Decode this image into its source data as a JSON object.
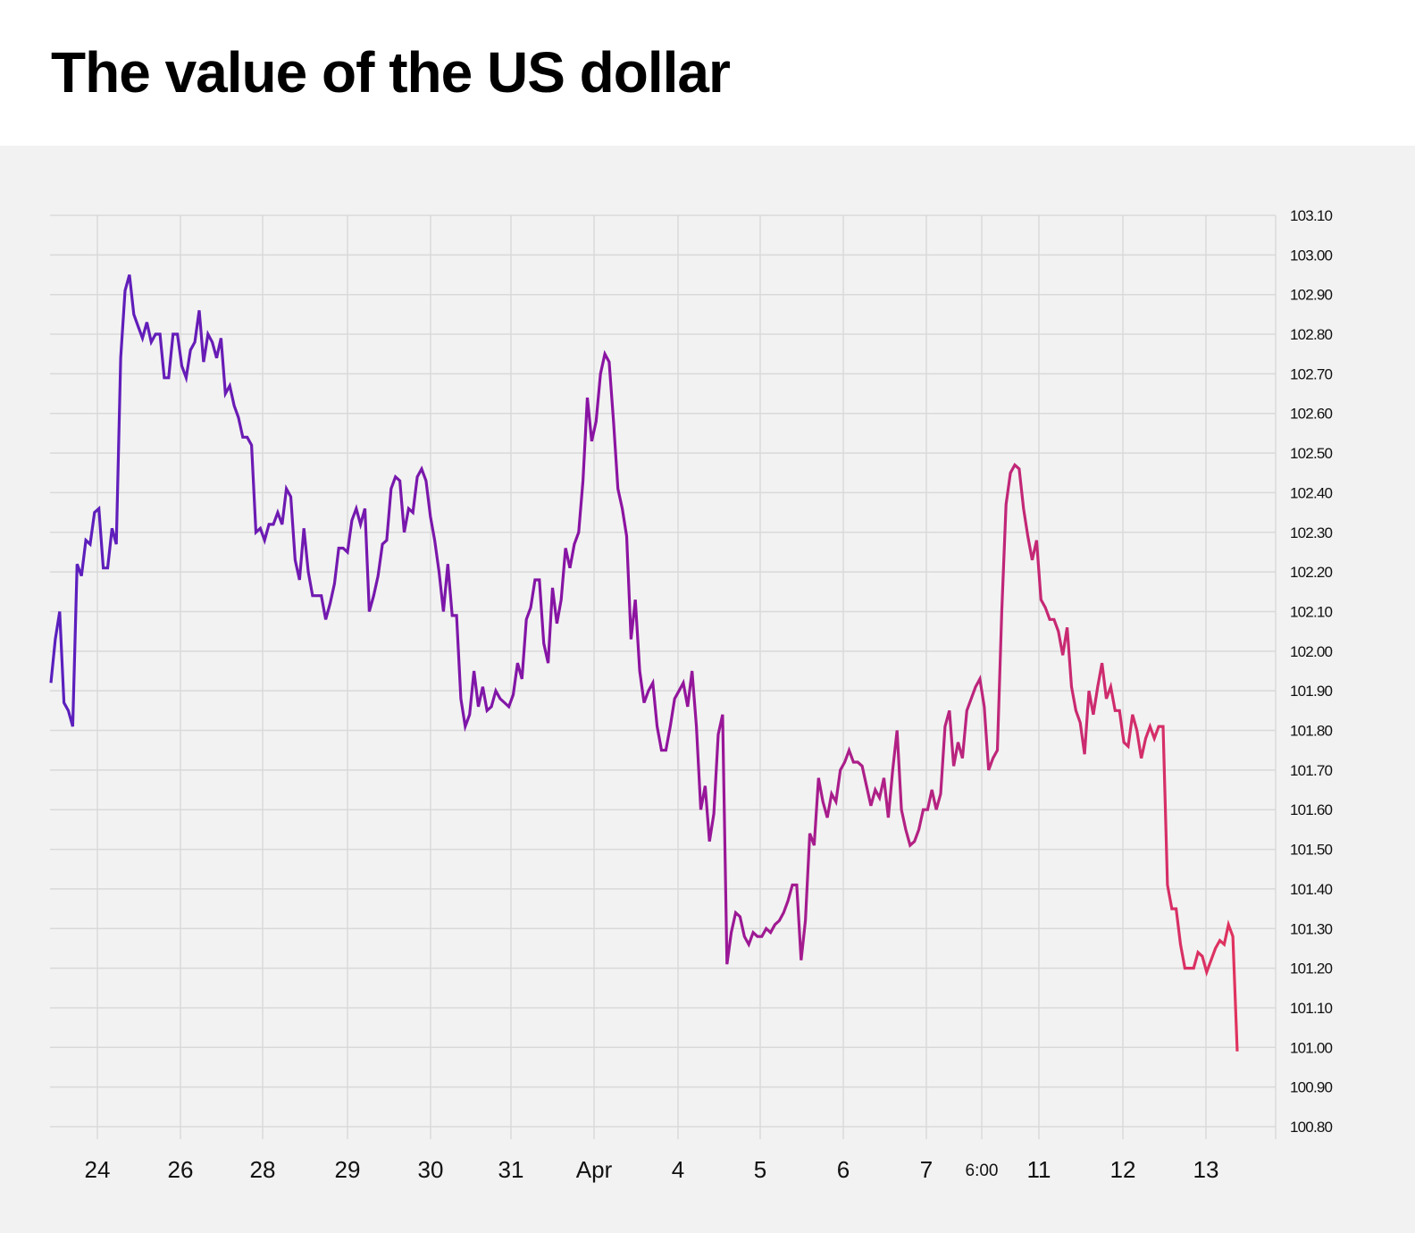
{
  "title": "The value of the US dollar",
  "chart_data": {
    "type": "line",
    "title": "The value of the US dollar",
    "xlabel": "",
    "ylabel": "",
    "ylim": [
      100.8,
      103.1
    ],
    "grid": true,
    "y_axis_side": "right",
    "x_tick_labels": [
      "24",
      "26",
      "28",
      "29",
      "30",
      "31",
      "Apr",
      "4",
      "5",
      "6",
      "7",
      "6:00",
      "11",
      "12",
      "13"
    ],
    "y_tick_labels": [
      "103.10",
      "103.00",
      "102.90",
      "102.80",
      "102.70",
      "102.60",
      "102.50",
      "102.40",
      "102.30",
      "102.20",
      "102.10",
      "102.00",
      "101.90",
      "101.80",
      "101.70",
      "101.60",
      "101.50",
      "101.40",
      "101.30",
      "101.20",
      "101.10",
      "101.00",
      "100.90",
      "100.80"
    ],
    "colors": {
      "start": "#5a1fbe",
      "middle": "#8e13a0",
      "end": "#e0335f",
      "grid": "#d9d9d9",
      "background": "#f2f2f2"
    },
    "values": [
      101.92,
      102.03,
      102.1,
      101.87,
      101.85,
      101.81,
      102.22,
      102.19,
      102.28,
      102.27,
      102.35,
      102.36,
      102.21,
      102.21,
      102.31,
      102.27,
      102.74,
      102.91,
      102.95,
      102.85,
      102.82,
      102.79,
      102.83,
      102.78,
      102.8,
      102.8,
      102.69,
      102.69,
      102.8,
      102.8,
      102.72,
      102.69,
      102.76,
      102.78,
      102.86,
      102.73,
      102.8,
      102.78,
      102.74,
      102.79,
      102.65,
      102.67,
      102.62,
      102.59,
      102.54,
      102.54,
      102.52,
      102.3,
      102.31,
      102.28,
      102.32,
      102.32,
      102.35,
      102.32,
      102.41,
      102.39,
      102.23,
      102.18,
      102.31,
      102.2,
      102.14,
      102.14,
      102.14,
      102.08,
      102.12,
      102.17,
      102.26,
      102.26,
      102.25,
      102.33,
      102.36,
      102.32,
      102.36,
      102.1,
      102.14,
      102.19,
      102.27,
      102.28,
      102.41,
      102.44,
      102.43,
      102.3,
      102.36,
      102.35,
      102.44,
      102.46,
      102.43,
      102.34,
      102.28,
      102.2,
      102.1,
      102.22,
      102.09,
      102.09,
      101.88,
      101.81,
      101.84,
      101.95,
      101.86,
      101.91,
      101.85,
      101.86,
      101.9,
      101.88,
      101.87,
      101.86,
      101.89,
      101.97,
      101.93,
      102.08,
      102.11,
      102.18,
      102.18,
      102.02,
      101.97,
      102.16,
      102.07,
      102.13,
      102.26,
      102.21,
      102.27,
      102.3,
      102.43,
      102.64,
      102.53,
      102.58,
      102.7,
      102.75,
      102.73,
      102.58,
      102.41,
      102.36,
      102.29,
      102.03,
      102.13,
      101.95,
      101.87,
      101.9,
      101.92,
      101.81,
      101.75,
      101.75,
      101.81,
      101.88,
      101.9,
      101.92,
      101.86,
      101.95,
      101.81,
      101.6,
      101.66,
      101.52,
      101.59,
      101.79,
      101.84,
      101.21,
      101.29,
      101.34,
      101.33,
      101.28,
      101.26,
      101.29,
      101.28,
      101.28,
      101.3,
      101.29,
      101.31,
      101.32,
      101.34,
      101.37,
      101.41,
      101.41,
      101.22,
      101.32,
      101.54,
      101.51,
      101.68,
      101.62,
      101.58,
      101.64,
      101.62,
      101.7,
      101.72,
      101.75,
      101.72,
      101.72,
      101.71,
      101.66,
      101.61,
      101.65,
      101.63,
      101.68,
      101.58,
      101.7,
      101.8,
      101.6,
      101.55,
      101.51,
      101.52,
      101.55,
      101.6,
      101.6,
      101.65,
      101.6,
      101.64,
      101.81,
      101.85,
      101.71,
      101.77,
      101.73,
      101.85,
      101.88,
      101.91,
      101.93,
      101.86,
      101.7,
      101.73,
      101.75,
      102.1,
      102.37,
      102.45,
      102.47,
      102.46,
      102.36,
      102.29,
      102.23,
      102.28,
      102.13,
      102.11,
      102.08,
      102.08,
      102.05,
      101.99,
      102.06,
      101.91,
      101.85,
      101.82,
      101.74,
      101.9,
      101.84,
      101.91,
      101.97,
      101.88,
      101.91,
      101.85,
      101.85,
      101.77,
      101.76,
      101.84,
      101.8,
      101.73,
      101.78,
      101.81,
      101.78,
      101.81,
      101.81,
      101.41,
      101.35,
      101.35,
      101.26,
      101.2,
      101.2,
      101.2,
      101.24,
      101.23,
      101.19,
      101.22,
      101.25,
      101.27,
      101.26,
      101.31,
      101.28,
      100.99
    ]
  }
}
